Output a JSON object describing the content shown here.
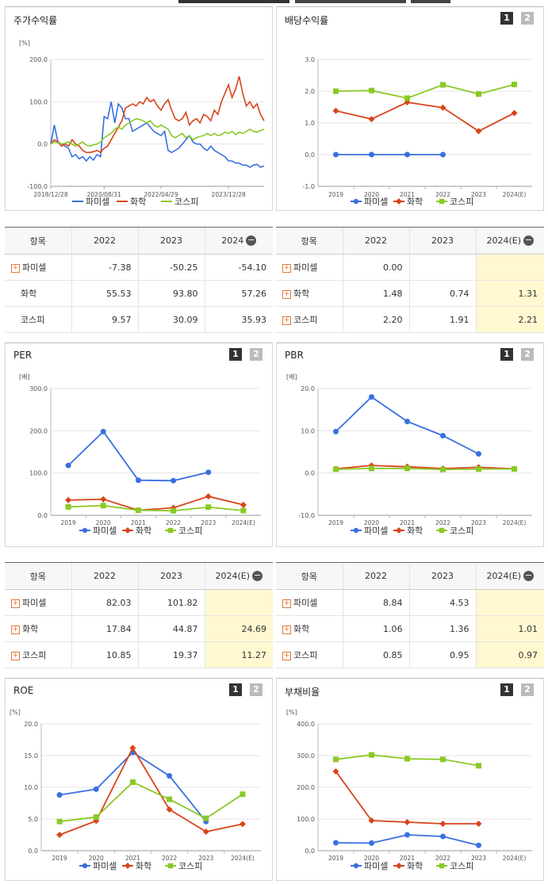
{
  "top_tabs": [
    {
      "id": "t1"
    },
    {
      "id": "t2"
    },
    {
      "id": "t3"
    }
  ],
  "colors": {
    "pharmicell": "#3a6fe0",
    "chem": "#d9441b",
    "kospi": "#8ac926"
  },
  "legend": [
    "파미셀",
    "화학",
    "코스피"
  ],
  "panels": {
    "stock_return": {
      "title": "주가수익률"
    },
    "dividend": {
      "title": "배당수익률",
      "btn1": "1",
      "btn2": "2"
    },
    "per": {
      "title": "PER",
      "btn1": "1",
      "btn2": "2"
    },
    "pbr": {
      "title": "PBR",
      "btn1": "1",
      "btn2": "2"
    },
    "roe": {
      "title": "ROE",
      "btn1": "1",
      "btn2": "2"
    },
    "debt": {
      "title": "부채비율",
      "btn1": "1",
      "btn2": "2"
    }
  },
  "tables": {
    "stock_return": {
      "headers": [
        "항목",
        "2022",
        "2023",
        "2024"
      ],
      "rows": [
        {
          "name": "파미셀",
          "plus": true,
          "values": [
            "-7.38",
            "-50.25",
            "-54.10"
          ]
        },
        {
          "name": "화학",
          "plus": false,
          "values": [
            "55.53",
            "93.80",
            "57.26"
          ]
        },
        {
          "name": "코스피",
          "plus": false,
          "values": [
            "9.57",
            "30.09",
            "35.93"
          ]
        }
      ]
    },
    "dividend": {
      "headers": [
        "항목",
        "2022",
        "2023",
        "2024(E)"
      ],
      "rows": [
        {
          "name": "파미셀",
          "plus": true,
          "values": [
            "0.00",
            "",
            ""
          ]
        },
        {
          "name": "화학",
          "plus": true,
          "values": [
            "1.48",
            "0.74",
            "1.31"
          ]
        },
        {
          "name": "코스피",
          "plus": true,
          "values": [
            "2.20",
            "1.91",
            "2.21"
          ]
        }
      ]
    },
    "per": {
      "headers": [
        "항목",
        "2022",
        "2023",
        "2024(E)"
      ],
      "rows": [
        {
          "name": "파미셀",
          "plus": true,
          "values": [
            "82.03",
            "101.82",
            ""
          ]
        },
        {
          "name": "화학",
          "plus": true,
          "values": [
            "17.84",
            "44.87",
            "24.69"
          ]
        },
        {
          "name": "코스피",
          "plus": true,
          "values": [
            "10.85",
            "19.37",
            "11.27"
          ]
        }
      ]
    },
    "pbr": {
      "headers": [
        "항목",
        "2022",
        "2023",
        "2024(E)"
      ],
      "rows": [
        {
          "name": "파미셀",
          "plus": true,
          "values": [
            "8.84",
            "4.53",
            ""
          ]
        },
        {
          "name": "화학",
          "plus": true,
          "values": [
            "1.06",
            "1.36",
            "1.01"
          ]
        },
        {
          "name": "코스피",
          "plus": true,
          "values": [
            "0.85",
            "0.95",
            "0.97"
          ]
        }
      ]
    }
  },
  "chart_data": [
    {
      "id": "stock_return",
      "type": "line",
      "unit": "[%]",
      "ylim": [
        -100,
        200
      ],
      "yticks": [
        "200.0",
        "100.0",
        "0.0",
        "-100.0"
      ],
      "xticks": [
        "2018/12/28",
        "2020/08/31",
        "2022/04/29",
        "2023/12/28"
      ],
      "x_index_range": [
        0,
        60
      ],
      "xtick_index": [
        0,
        15,
        31,
        50
      ],
      "series": [
        {
          "name": "파미셀",
          "values": [
            0,
            45,
            5,
            0,
            -5,
            -10,
            -30,
            -25,
            -35,
            -30,
            -40,
            -30,
            -38,
            -25,
            -30,
            65,
            60,
            100,
            50,
            95,
            85,
            60,
            60,
            30,
            35,
            40,
            45,
            50,
            40,
            30,
            25,
            20,
            30,
            -15,
            -20,
            -15,
            -10,
            0,
            10,
            20,
            5,
            0,
            0,
            -10,
            -15,
            -5,
            -15,
            -20,
            -25,
            -30,
            -40,
            -40,
            -45,
            -45,
            -50,
            -50,
            -55,
            -50,
            -48,
            -55,
            -52
          ]
        },
        {
          "name": "화학",
          "values": [
            0,
            10,
            5,
            -5,
            0,
            -5,
            10,
            0,
            -5,
            -15,
            -20,
            -20,
            -18,
            -15,
            -20,
            -10,
            -5,
            10,
            25,
            40,
            55,
            85,
            90,
            95,
            90,
            100,
            95,
            110,
            100,
            105,
            90,
            80,
            95,
            105,
            80,
            60,
            55,
            60,
            75,
            45,
            55,
            60,
            50,
            70,
            65,
            55,
            80,
            70,
            100,
            120,
            140,
            110,
            130,
            160,
            120,
            90,
            100,
            85,
            95,
            70,
            55
          ]
        },
        {
          "name": "코스피",
          "values": [
            0,
            5,
            3,
            0,
            2,
            5,
            0,
            -5,
            0,
            5,
            -3,
            -5,
            -2,
            0,
            5,
            15,
            20,
            25,
            35,
            40,
            35,
            45,
            50,
            55,
            60,
            58,
            55,
            50,
            55,
            45,
            40,
            45,
            40,
            35,
            20,
            15,
            20,
            25,
            15,
            20,
            10,
            15,
            18,
            20,
            25,
            20,
            25,
            20,
            22,
            28,
            25,
            30,
            22,
            28,
            25,
            30,
            35,
            30,
            28,
            32,
            35
          ]
        }
      ]
    },
    {
      "id": "dividend",
      "type": "line",
      "unit": "",
      "ylim": [
        -1,
        3
      ],
      "yticks": [
        "3.0",
        "2.0",
        "1.0",
        "0.0",
        "-1.0"
      ],
      "categories": [
        "2019",
        "2020",
        "2021",
        "2022",
        "2023",
        "2024(E)"
      ],
      "series": [
        {
          "name": "파미셀",
          "values": [
            0,
            0,
            0,
            0,
            null,
            null
          ]
        },
        {
          "name": "화학",
          "values": [
            1.38,
            1.12,
            1.65,
            1.48,
            0.74,
            1.31
          ]
        },
        {
          "name": "코스피",
          "values": [
            2.0,
            2.02,
            1.78,
            2.2,
            1.91,
            2.21
          ]
        }
      ]
    },
    {
      "id": "per",
      "type": "line",
      "unit": "[배]",
      "ylim": [
        0,
        300
      ],
      "yticks": [
        "300.0",
        "200.0",
        "100.0",
        "0.0"
      ],
      "categories": [
        "2019",
        "2020",
        "2021",
        "2022",
        "2023",
        "2024(E)"
      ],
      "series": [
        {
          "name": "파미셀",
          "values": [
            118,
            198,
            83,
            82.03,
            101.82,
            null
          ]
        },
        {
          "name": "화학",
          "values": [
            36,
            38,
            12,
            17.84,
            44.87,
            24.69
          ]
        },
        {
          "name": "코스피",
          "values": [
            20,
            23,
            12,
            10.85,
            19.37,
            11.27
          ]
        }
      ]
    },
    {
      "id": "pbr",
      "type": "line",
      "unit": "[배]",
      "ylim": [
        -10,
        20
      ],
      "yticks": [
        "20.0",
        "10.0",
        "0.0",
        "-10.0"
      ],
      "categories": [
        "2019",
        "2020",
        "2021",
        "2022",
        "2023",
        "2024(E)"
      ],
      "series": [
        {
          "name": "파미셀",
          "values": [
            9.8,
            18,
            12.2,
            8.84,
            4.53,
            null
          ]
        },
        {
          "name": "화학",
          "values": [
            1.0,
            1.8,
            1.5,
            1.06,
            1.36,
            1.01
          ]
        },
        {
          "name": "코스피",
          "values": [
            0.9,
            1.1,
            1.1,
            0.85,
            0.95,
            0.97
          ]
        }
      ]
    },
    {
      "id": "roe",
      "type": "line",
      "unit": "[%]",
      "ylim": [
        0,
        20
      ],
      "yticks": [
        "20.0",
        "15.0",
        "10.0",
        "5.0",
        "0.0"
      ],
      "categories": [
        "2019",
        "2020",
        "2021",
        "2022",
        "2023",
        "2024(E)"
      ],
      "series": [
        {
          "name": "파미셀",
          "values": [
            8.8,
            9.7,
            15.5,
            11.8,
            4.6,
            null
          ]
        },
        {
          "name": "화학",
          "values": [
            2.5,
            4.7,
            16.2,
            6.5,
            3.0,
            4.2
          ]
        },
        {
          "name": "코스피",
          "values": [
            4.6,
            5.3,
            10.8,
            8.1,
            5.1,
            8.9
          ]
        }
      ]
    },
    {
      "id": "debt",
      "type": "line",
      "unit": "[%]",
      "ylim": [
        0,
        400
      ],
      "yticks": [
        "400.0",
        "300.0",
        "200.0",
        "100.0",
        "0.0"
      ],
      "categories": [
        "2019",
        "2020",
        "2021",
        "2022",
        "2023",
        "2024(E)"
      ],
      "series": [
        {
          "name": "파미셀",
          "values": [
            25,
            24,
            50,
            45,
            17,
            null
          ]
        },
        {
          "name": "화학",
          "values": [
            250,
            95,
            90,
            85,
            85,
            null
          ]
        },
        {
          "name": "코스피",
          "values": [
            288,
            302,
            290,
            288,
            268,
            null
          ]
        }
      ]
    }
  ]
}
